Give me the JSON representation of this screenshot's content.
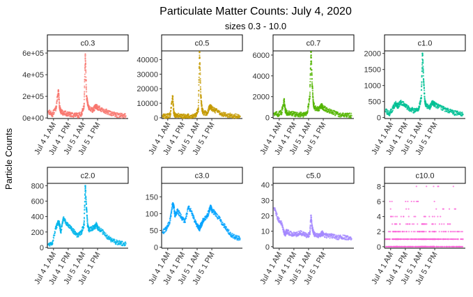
{
  "chart_data": {
    "type": "scatter",
    "title": "Particulate Matter Counts: July 4, 2020",
    "subtitle": "sizes 0.3 - 10.0",
    "ylabel": "Particle Counts",
    "xlabel": "",
    "x_ticks": [
      "Jul 4 1 AM",
      "Jul 4 1 PM",
      "Jul 5 1 AM",
      "Jul 5 1 PM"
    ],
    "x_range_hours": [
      -4,
      62
    ],
    "x_tick_hours": [
      1,
      13,
      25,
      37
    ],
    "grid": false,
    "legend": "none",
    "panels": [
      {
        "name": "c0.3",
        "color": "#F8766D",
        "ylim": [
          -5000,
          620000
        ],
        "yticks": [
          0,
          200000,
          400000,
          600000
        ],
        "ytick_labels": [
          "0e+00",
          "2e+05",
          "4e+05",
          "6e+05"
        ],
        "x": [
          -3,
          0,
          3,
          5,
          6,
          7,
          9,
          12,
          15,
          18,
          21,
          24,
          26,
          27,
          28,
          29,
          30,
          33,
          35,
          36,
          37,
          40,
          44,
          48,
          52,
          56,
          60
        ],
        "y": [
          60000,
          30000,
          90000,
          250000,
          100000,
          60000,
          45000,
          40000,
          30000,
          28000,
          22000,
          40000,
          110000,
          580000,
          200000,
          130000,
          90000,
          70000,
          100000,
          110000,
          95000,
          80000,
          60000,
          40000,
          30000,
          22000,
          18000
        ]
      },
      {
        "name": "c0.5",
        "color": "#C49A00",
        "ylim": [
          -500,
          46000
        ],
        "yticks": [
          0,
          10000,
          20000,
          30000,
          40000
        ],
        "ytick_labels": [
          "0",
          "10000",
          "20000",
          "30000",
          "40000"
        ],
        "x": [
          -3,
          0,
          3,
          5,
          6,
          7,
          9,
          12,
          15,
          18,
          21,
          24,
          26,
          27,
          28,
          29,
          30,
          33,
          35,
          36,
          37,
          40,
          44,
          48,
          52,
          56,
          60
        ],
        "y": [
          1500,
          800,
          2000,
          15000,
          3000,
          1800,
          1500,
          1300,
          1200,
          1000,
          900,
          1500,
          6000,
          45000,
          15000,
          6000,
          3500,
          3000,
          7000,
          8000,
          6500,
          5000,
          3000,
          2000,
          1500,
          1200,
          1000
        ]
      },
      {
        "name": "c0.7",
        "color": "#53B400",
        "ylim": [
          -100,
          6400
        ],
        "yticks": [
          0,
          2000,
          4000,
          6000
        ],
        "ytick_labels": [
          "0",
          "2000",
          "4000",
          "6000"
        ],
        "x": [
          -3,
          0,
          3,
          5,
          6,
          7,
          9,
          12,
          15,
          18,
          21,
          24,
          26,
          27,
          28,
          29,
          30,
          33,
          35,
          36,
          37,
          40,
          44,
          48,
          52,
          56,
          60
        ],
        "y": [
          400,
          300,
          500,
          1700,
          700,
          450,
          400,
          350,
          300,
          280,
          250,
          500,
          2000,
          6300,
          3000,
          1300,
          900,
          800,
          1100,
          1100,
          950,
          700,
          500,
          350,
          250,
          200,
          180
        ]
      },
      {
        "name": "c1.0",
        "color": "#00C094",
        "ylim": [
          -30,
          2080
        ],
        "yticks": [
          0,
          500,
          1000,
          1500,
          2000
        ],
        "ytick_labels": [
          "0",
          "500",
          "1000",
          "1500",
          "2000"
        ],
        "x": [
          -3,
          0,
          3,
          5,
          6,
          7,
          9,
          12,
          15,
          18,
          21,
          24,
          26,
          27,
          28,
          29,
          30,
          33,
          35,
          36,
          37,
          40,
          44,
          48,
          52,
          56,
          60
        ],
        "y": [
          200,
          120,
          300,
          450,
          400,
          350,
          480,
          420,
          300,
          250,
          200,
          300,
          600,
          2000,
          1100,
          500,
          350,
          330,
          450,
          450,
          400,
          350,
          280,
          220,
          160,
          120,
          100
        ]
      },
      {
        "name": "c2.0",
        "color": "#00B6EB",
        "ylim": [
          -10,
          830
        ],
        "yticks": [
          0,
          200,
          400,
          600,
          800
        ],
        "ytick_labels": [
          "0",
          "200",
          "400",
          "600",
          "800"
        ],
        "x": [
          -3,
          0,
          3,
          5,
          6,
          7,
          9,
          12,
          15,
          18,
          21,
          24,
          26,
          27,
          28,
          29,
          30,
          33,
          35,
          36,
          37,
          40,
          44,
          48,
          52,
          56,
          60
        ],
        "y": [
          40,
          60,
          250,
          330,
          300,
          200,
          380,
          300,
          250,
          200,
          150,
          200,
          300,
          800,
          500,
          280,
          230,
          250,
          270,
          300,
          250,
          220,
          150,
          100,
          70,
          55,
          50
        ]
      },
      {
        "name": "c3.0",
        "color": "#06A4FF",
        "ylim": [
          -3,
          190
        ],
        "yticks": [
          0,
          50,
          100,
          150
        ],
        "ytick_labels": [
          "0",
          "50",
          "100",
          "150"
        ],
        "x": [
          -3,
          0,
          3,
          5,
          6,
          7,
          9,
          12,
          15,
          18,
          21,
          24,
          26,
          27,
          28,
          29,
          30,
          33,
          35,
          36,
          37,
          40,
          44,
          48,
          52,
          56,
          60
        ],
        "y": [
          45,
          55,
          80,
          130,
          120,
          95,
          110,
          90,
          75,
          120,
          100,
          70,
          60,
          55,
          65,
          70,
          80,
          90,
          110,
          120,
          110,
          100,
          80,
          60,
          40,
          30,
          25
        ]
      },
      {
        "name": "c5.0",
        "color": "#A58AFF",
        "ylim": [
          -1,
          41
        ],
        "yticks": [
          0,
          10,
          20,
          30,
          40
        ],
        "ytick_labels": [
          "0",
          "10",
          "20",
          "30",
          "40"
        ],
        "x": [
          -3,
          0,
          3,
          5,
          6,
          7,
          9,
          12,
          15,
          18,
          21,
          24,
          26,
          27,
          28,
          29,
          30,
          33,
          35,
          36,
          37,
          40,
          44,
          48,
          52,
          56,
          60
        ],
        "y": [
          25,
          18,
          15,
          9,
          8,
          10,
          9,
          8,
          8,
          9,
          8,
          7,
          8,
          20,
          12,
          9,
          8,
          7,
          8,
          9,
          8,
          7,
          7,
          6,
          6,
          6,
          5
        ]
      },
      {
        "name": "c10.0",
        "color": "#FB61D7",
        "ylim": [
          -0.2,
          8.4
        ],
        "yticks": [
          0,
          2,
          4,
          6,
          8
        ],
        "ytick_labels": [
          "0",
          "2",
          "4",
          "6",
          "8"
        ],
        "x": [
          -3,
          0,
          3,
          5,
          6,
          7,
          9,
          12,
          15,
          18,
          21,
          24,
          26,
          27,
          28,
          29,
          30,
          33,
          35,
          36,
          37,
          40,
          44,
          48,
          52,
          56,
          60
        ],
        "y": [
          1,
          1,
          1,
          1,
          1,
          1,
          1,
          1,
          1,
          1,
          1,
          1,
          1,
          1,
          1,
          1,
          1,
          1,
          1,
          1,
          1,
          1,
          1,
          1,
          1,
          1,
          1
        ]
      }
    ]
  }
}
